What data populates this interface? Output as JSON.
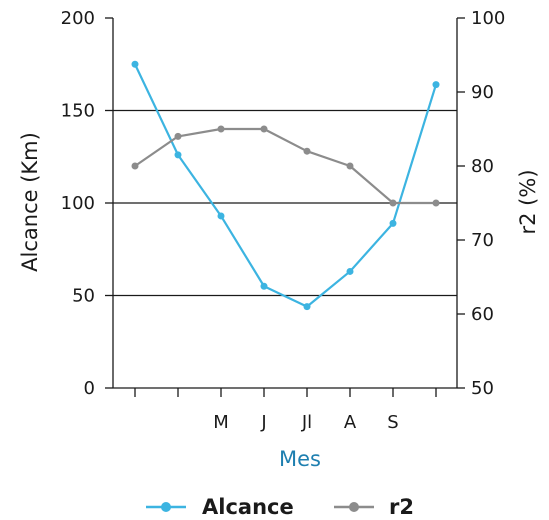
{
  "chart_data": {
    "type": "line",
    "x": [
      "",
      "",
      "M",
      "J",
      "Jl",
      "A",
      "S",
      ""
    ],
    "xlabel": "Mes",
    "ylabel_left": "Alcance (Km)",
    "ylabel_right": "r2 (%)",
    "ylim_left": [
      0,
      200
    ],
    "ylim_right": [
      50,
      100
    ],
    "yticks_left": [
      "0",
      "50",
      "100",
      "150",
      "200"
    ],
    "yticks_right": [
      "50",
      "60",
      "70",
      "80",
      "90",
      "100"
    ],
    "grid": "horizontal gridlines at 50, 100, 150 (left axis)",
    "legend_position": "bottom",
    "series": [
      {
        "name": "Alcance",
        "axis": "left",
        "color": "#3cb4e1",
        "values": [
          175,
          126,
          93,
          55,
          44,
          63,
          89,
          164
        ]
      },
      {
        "name": "r2",
        "axis": "right",
        "color": "#8c8c8c",
        "values": [
          80,
          84,
          85,
          85,
          82,
          80,
          75,
          75
        ]
      }
    ],
    "colors": {
      "axis": "#1a1a1a",
      "xlabel": "#1e7fb0"
    }
  }
}
